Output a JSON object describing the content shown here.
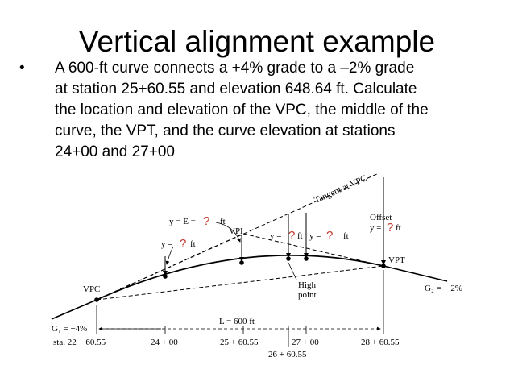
{
  "slide": {
    "title": "Vertical alignment example",
    "bullet_symbol": "•",
    "bullet_lines": [
      "A 600-ft curve connects a +4% grade to a –2% grade",
      "at station 25+60.55 and elevation 648.64 ft.  Calculate",
      "the location and elevation of the VPC, the middle of the",
      "curve, the VPT, and the curve elevation at stations",
      "24+00 and 27+00"
    ]
  },
  "diagram": {
    "tangent_label": "Tangent at VPC",
    "vpi_label": "VPI",
    "vpc_label": "VPC",
    "vpt_label": "VPT",
    "high_point_label_1": "High",
    "high_point_label_2": "point",
    "offset_label": "Offset",
    "y_e_label": "y = E =",
    "y_label": "y =",
    "ft_unit": "ft",
    "question_mark": "?",
    "g1_label": "G₁ = +4%",
    "g2_label": "G₂ = − 2%",
    "length_label": "L = 600 ft",
    "stations": {
      "s1": "sta. 22 + 60.55",
      "s2": "24 + 00",
      "s3": "25 + 60.55",
      "s4": "27 + 00",
      "s5": "26 + 60.55",
      "s6": "28 + 60.55"
    },
    "colors": {
      "question": "#c0392b",
      "lines": "#000000"
    }
  }
}
